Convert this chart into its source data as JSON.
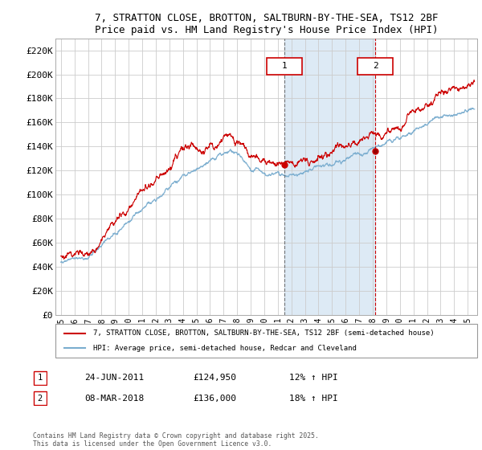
{
  "title_line1": "7, STRATTON CLOSE, BROTTON, SALTBURN-BY-THE-SEA, TS12 2BF",
  "title_line2": "Price paid vs. HM Land Registry's House Price Index (HPI)",
  "ylim": [
    0,
    230000
  ],
  "yticks": [
    0,
    20000,
    40000,
    60000,
    80000,
    100000,
    120000,
    140000,
    160000,
    180000,
    200000,
    220000
  ],
  "ytick_labels": [
    "£0",
    "£20K",
    "£40K",
    "£60K",
    "£80K",
    "£100K",
    "£120K",
    "£140K",
    "£160K",
    "£180K",
    "£200K",
    "£220K"
  ],
  "legend_label_red": "7, STRATTON CLOSE, BROTTON, SALTBURN-BY-THE-SEA, TS12 2BF (semi-detached house)",
  "legend_label_blue": "HPI: Average price, semi-detached house, Redcar and Cleveland",
  "purchase1_label": "1",
  "purchase1_date": "24-JUN-2011",
  "purchase1_price": "£124,950",
  "purchase1_hpi": "12% ↑ HPI",
  "purchase1_x": 2011.47,
  "purchase2_label": "2",
  "purchase2_date": "08-MAR-2018",
  "purchase2_price": "£136,000",
  "purchase2_hpi": "18% ↑ HPI",
  "purchase2_x": 2018.18,
  "red_color": "#cc0000",
  "blue_color": "#7aadcf",
  "shaded_color": "#ddeaf5",
  "vline1_color": "#555555",
  "vline2_color": "#cc0000",
  "footer": "Contains HM Land Registry data © Crown copyright and database right 2025.\nThis data is licensed under the Open Government Licence v3.0.",
  "xlim_start": 1994.6,
  "xlim_end": 2025.7,
  "p1_y": 124950,
  "p2_y": 136000
}
